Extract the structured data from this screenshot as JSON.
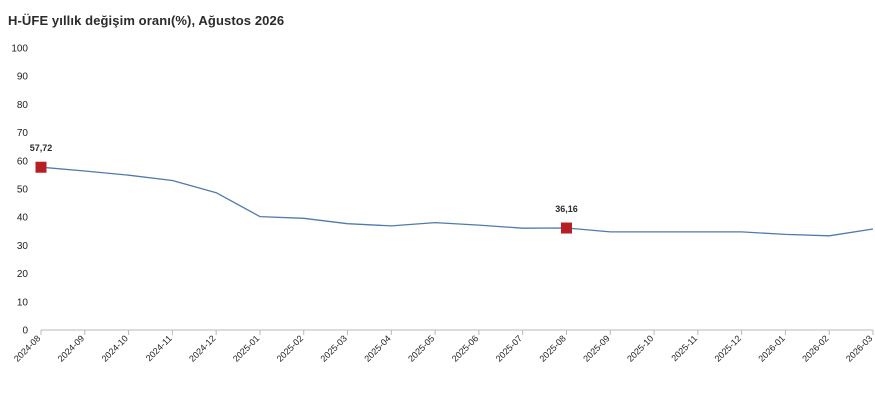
{
  "chart_data": {
    "type": "line",
    "title": "H-ÜFE yıllık değişim oranı(%), Ağustos 2026",
    "xlabel": "",
    "ylabel": "",
    "ylim": [
      0,
      100
    ],
    "yticks": [
      0,
      10,
      20,
      30,
      40,
      50,
      60,
      70,
      80,
      90,
      100
    ],
    "categories": [
      "2024-08",
      "2024-09",
      "2024-10",
      "2024-11",
      "2024-12",
      "2025-01",
      "2025-02",
      "2025-03",
      "2025-04",
      "2025-05",
      "2025-06",
      "2025-07",
      "2025-08",
      "2025-09",
      "2025-10",
      "2025-11",
      "2025-12",
      "2026-01",
      "2026-02",
      "2026-03"
    ],
    "series": [
      {
        "values": [
          57.72,
          56.4,
          54.9,
          53.0,
          48.7,
          40.2,
          39.6,
          37.7,
          36.9,
          38.1,
          37.2,
          36.1,
          36.16,
          34.8,
          34.8,
          34.8,
          34.8,
          33.9,
          33.4,
          35.8
        ]
      }
    ],
    "highlights": [
      {
        "index": 0,
        "label": "57,72"
      },
      {
        "index": 12,
        "label": "36,16"
      }
    ],
    "colors": {
      "line": "#4f7bab",
      "marker": "#b52025",
      "axis": "#b8b8b8"
    },
    "grid": false,
    "legend": "none"
  }
}
